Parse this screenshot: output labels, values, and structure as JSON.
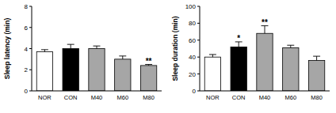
{
  "chart_data": [
    {
      "type": "bar",
      "ylabel": "Sleep latency (min)",
      "categories": [
        "NOR",
        "CON",
        "M40",
        "M60",
        "M80"
      ],
      "values": [
        3.7,
        4.0,
        4.0,
        3.0,
        2.4
      ],
      "errors": [
        0.2,
        0.4,
        0.25,
        0.3,
        0.1
      ],
      "significance": [
        null,
        null,
        null,
        null,
        "**"
      ],
      "colors": [
        "#ffffff",
        "#000000",
        "#a6a6a6",
        "#a6a6a6",
        "#a6a6a6"
      ],
      "ylim": [
        0,
        8
      ],
      "yticks": [
        0,
        2,
        4,
        6,
        8
      ],
      "grid": false
    },
    {
      "type": "bar",
      "ylabel": "Sleep duration (min)",
      "categories": [
        "NOR",
        "CON",
        "M40",
        "M60",
        "M80"
      ],
      "values": [
        40,
        52,
        68,
        51,
        36
      ],
      "errors": [
        3,
        6,
        9,
        3,
        5
      ],
      "significance": [
        null,
        "*",
        "**",
        null,
        null
      ],
      "colors": [
        "#ffffff",
        "#000000",
        "#a6a6a6",
        "#a6a6a6",
        "#a6a6a6"
      ],
      "ylim": [
        0,
        100
      ],
      "yticks": [
        0,
        20,
        40,
        60,
        80,
        100
      ],
      "grid": false
    }
  ]
}
